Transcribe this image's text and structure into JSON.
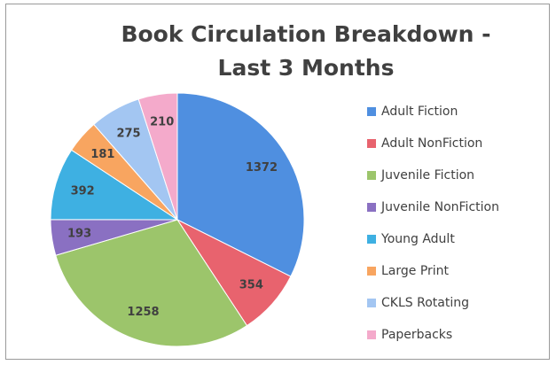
{
  "chart_data": {
    "type": "pie",
    "title": "Book Circulation Breakdown - Last 3 Months",
    "categories": [
      "Adult Fiction",
      "Adult NonFiction",
      "Juvenile Fiction",
      "Juvenile NonFiction",
      "Young Adult",
      "Large Print",
      "CKLS Rotating",
      "Paperbacks"
    ],
    "values": [
      1372,
      354,
      1258,
      193,
      392,
      181,
      275,
      210
    ],
    "colors": [
      "#4f8fe0",
      "#e8636e",
      "#9cc56b",
      "#8a70c2",
      "#3eb0e2",
      "#f8a560",
      "#a3c6f2",
      "#f4aacb"
    ],
    "legend": "right"
  }
}
